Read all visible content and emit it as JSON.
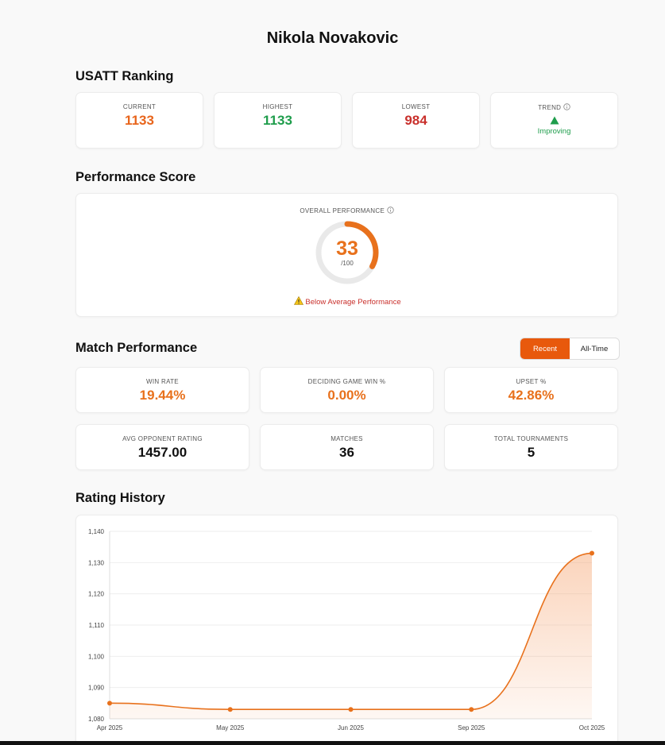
{
  "header": {
    "title": "Nikola Novakovic"
  },
  "ranking": {
    "title": "USATT Ranking",
    "cards": [
      {
        "label": "CURRENT",
        "value": 1133,
        "color": "#e8651c"
      },
      {
        "label": "HIGHEST",
        "value": 1133,
        "color": "#1f9d4c"
      },
      {
        "label": "LOWEST",
        "value": 984,
        "color": "#c9302c"
      }
    ],
    "trend": {
      "label": "TREND",
      "status": "Improving",
      "color": "#1f9d4c"
    }
  },
  "performance": {
    "title": "Performance Score",
    "label": "OVERALL PERFORMANCE",
    "score": 33,
    "scale": {
      "value": 100,
      "label": "/100"
    },
    "color": "#e8711c",
    "warning": "Below Average Performance"
  },
  "match": {
    "title": "Match Performance",
    "toggle": {
      "options": [
        "Recent",
        "All-Time"
      ],
      "active": 0
    },
    "stats": [
      {
        "label": "WIN RATE",
        "value": "19.44%",
        "color": "#e8711c"
      },
      {
        "label": "DECIDING GAME WIN %",
        "value": "0.00%",
        "color": "#e8711c"
      },
      {
        "label": "UPSET %",
        "value": "42.86%",
        "color": "#e8711c"
      },
      {
        "label": "AVG OPPONENT RATING",
        "value": "1457.00",
        "color": "#111111"
      },
      {
        "label": "MATCHES",
        "value": 36,
        "color": "#111111"
      },
      {
        "label": "TOTAL TOURNAMENTS",
        "value": 5,
        "color": "#111111"
      }
    ]
  },
  "chart_data": {
    "type": "line",
    "title": "Rating History",
    "categories": [
      "Apr 2025",
      "May 2025",
      "Jun 2025",
      "Sep 2025",
      "Oct 2025"
    ],
    "values": [
      1085,
      1083,
      1083,
      1083,
      1133
    ],
    "color": "#e8711c",
    "ylim": [
      1080,
      1140
    ],
    "yticks": [
      {
        "value": 1080,
        "label": "1,080"
      },
      {
        "value": 1090,
        "label": "1,090"
      },
      {
        "value": 1100,
        "label": "1,100"
      },
      {
        "value": 1110,
        "label": "1,110"
      },
      {
        "value": 1120,
        "label": "1,120"
      },
      {
        "value": 1130,
        "label": "1,130"
      },
      {
        "value": 1140,
        "label": "1,140"
      }
    ],
    "grid": true
  }
}
